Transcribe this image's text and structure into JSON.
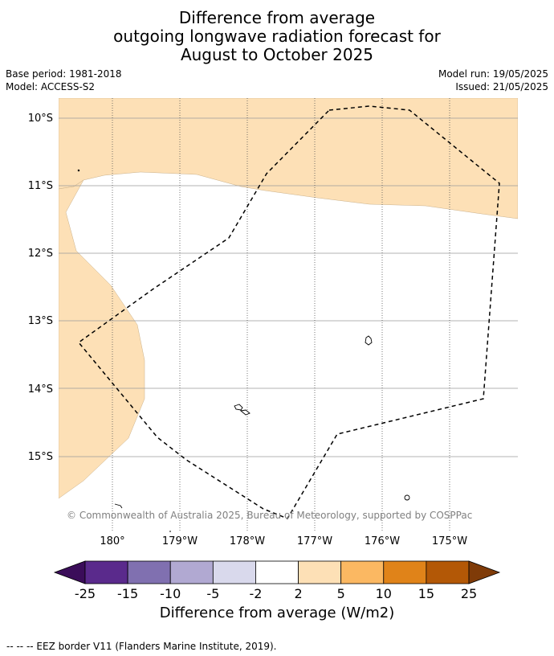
{
  "title": {
    "line1": "Difference from average",
    "line2": "outgoing longwave radiation forecast for",
    "line3": "August to October 2025"
  },
  "meta": {
    "base_period": "Base period: 1981-2018",
    "model": "Model: ACCESS-S2",
    "model_run": "Model run: 19/05/2025",
    "issued": "Issued: 21/05/2025"
  },
  "map": {
    "lat_labels": [
      "10°S",
      "11°S",
      "12°S",
      "13°S",
      "14°S",
      "15°S"
    ],
    "lon_labels": [
      "180°",
      "179°W",
      "178°W",
      "177°W",
      "176°W",
      "175°W"
    ],
    "copyright": "© Commonwealth of Australia 2025, Bureau of Meteorology, supported by COSPPac",
    "colors": {
      "light_orange_fill": "#fde0b6",
      "grid_line": "#9a9a9a",
      "eez_line": "#000000"
    }
  },
  "colorbar": {
    "ticks": [
      "-25",
      "-15",
      "-10",
      "-5",
      "-2",
      "2",
      "5",
      "10",
      "15",
      "25"
    ],
    "colors": [
      "#3b0d5a",
      "#5a2a8c",
      "#8070b0",
      "#b1a9d2",
      "#d9d9ec",
      "#ffffff",
      "#fde0b6",
      "#fbb862",
      "#e08319",
      "#b35806",
      "#7f3b08"
    ],
    "label": "Difference from average (W/m2)"
  },
  "footer": "--  --  -- EEZ border V11 (Flanders Marine Institute, 2019)."
}
